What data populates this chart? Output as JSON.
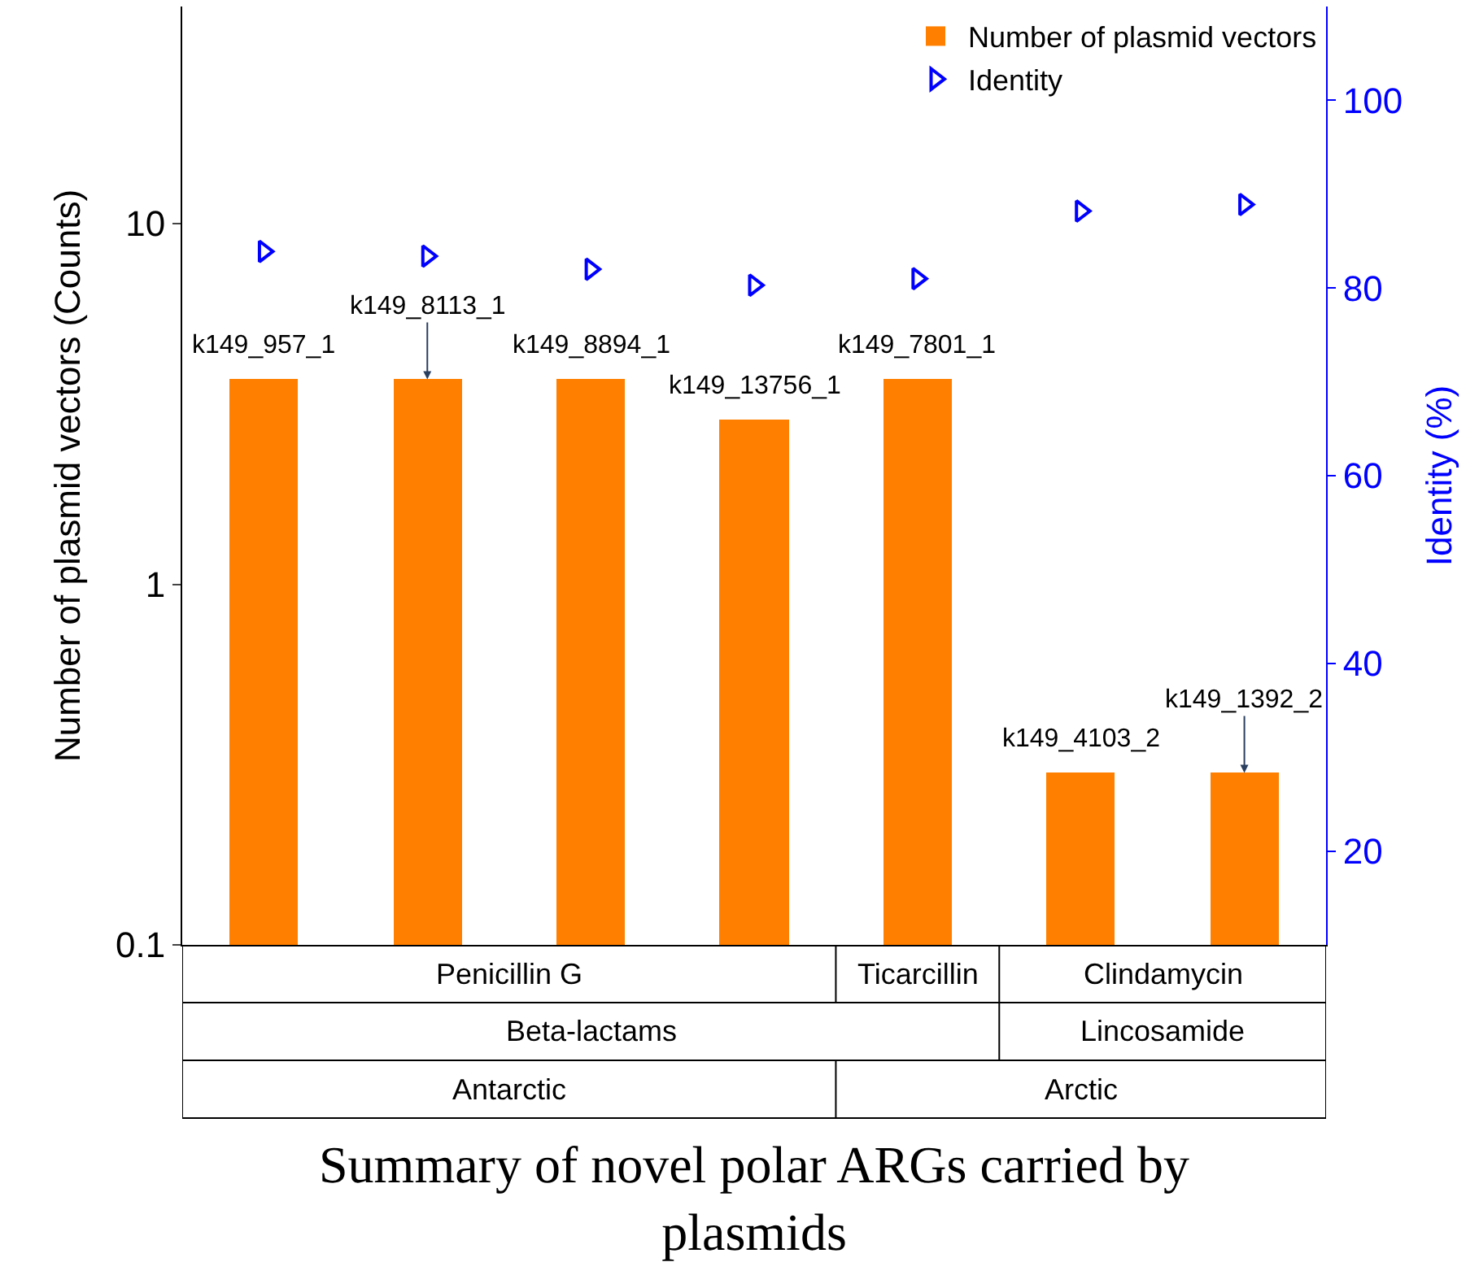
{
  "chart_data": {
    "type": "bar",
    "categories": [
      null,
      null,
      null,
      null,
      null,
      null,
      null
    ],
    "series": [
      {
        "name": "Number of plasmid vectors",
        "color": "#ff8000",
        "values": [
          3.7,
          3.7,
          3.7,
          2.85,
          3.7,
          0.3,
          0.3
        ]
      },
      {
        "name": "Identity",
        "type": "scatter",
        "axis": "y2",
        "color": "#0000ff",
        "marker": "triangle",
        "values": [
          83.9,
          83.4,
          82,
          80.3,
          81,
          88.2,
          88.9
        ]
      }
    ],
    "log": "y",
    "ylim": [
      0.1,
      40
    ],
    "yticks": [
      0.1,
      1,
      10
    ],
    "y2lim": [
      10,
      110
    ],
    "y2ticks": [
      20,
      40,
      60,
      80,
      100
    ],
    "ylabel": "Number of plasmid vectors (Counts)",
    "y2label": "Identity (%)",
    "xlabel": "Summary of novel polar ARGs carried by plasmids",
    "legend": "top right",
    "annotations": [
      {
        "text": "k149_957_1",
        "y": 3.7
      },
      {
        "text": "k149_8113_1",
        "y": 3.7
      },
      {
        "text": "k149_8894_1",
        "y": 3.7
      },
      {
        "text": "k149_13756_1",
        "y": 2.85
      },
      {
        "text": "k149_7801_1",
        "y": 3.7
      },
      {
        "text": "k149_4103_2",
        "y": 0.3
      },
      {
        "text": "k149_1392_2",
        "y": 0.3
      },
      "Penicillin G",
      "Ticarcillin",
      "Clindamycin",
      "Beta-lactams",
      "Lincosamide",
      "Antarctic",
      "Arctic"
    ]
  }
}
